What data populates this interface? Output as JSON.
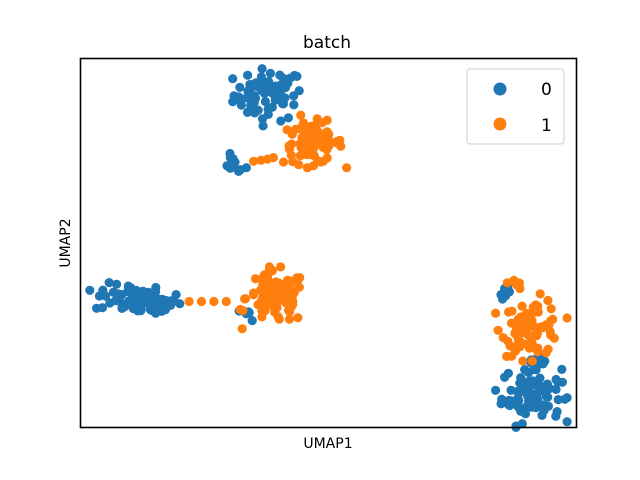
{
  "chart_data": {
    "type": "scatter",
    "title": "batch",
    "xlabel": "UMAP1",
    "ylabel": "UMAP2",
    "xlim": [
      0,
      100
    ],
    "ylim": [
      0,
      100
    ],
    "ticks": "none",
    "grid": false,
    "legend_position": "top-right",
    "legend_entries": [
      "0",
      "1"
    ],
    "series": [
      {
        "name": "0",
        "color": "#1f77b4",
        "clusters": [
          {
            "center": [
              38,
              90
            ],
            "spread": [
              3.5,
              3.5
            ],
            "count": 70
          },
          {
            "center": [
              31,
              71
            ],
            "spread": [
              1.2,
              1.3
            ],
            "count": 12
          },
          {
            "center": [
              10,
              35
            ],
            "spread": [
              3.5,
              1.9
            ],
            "count": 50
          },
          {
            "center": [
              15,
              33.5
            ],
            "spread": [
              3.0,
              1.6
            ],
            "count": 40
          },
          {
            "center": [
              34,
              30.5
            ],
            "spread": [
              0.8,
              0.8
            ],
            "count": 6
          },
          {
            "center": [
              86,
              37
            ],
            "spread": [
              0.8,
              1.1
            ],
            "count": 7
          },
          {
            "center": [
              91,
              9
            ],
            "spread": [
              3.0,
              3.8
            ],
            "count": 80
          },
          {
            "center": [
              92,
              17.5
            ],
            "spread": [
              1.0,
              1.6
            ],
            "count": 10
          }
        ],
        "points": []
      },
      {
        "name": "1",
        "color": "#ff7f0e",
        "clusters": [
          {
            "center": [
              47,
              77
            ],
            "spread": [
              3.0,
              2.8
            ],
            "count": 80
          },
          {
            "center": [
              39.5,
              35
            ],
            "spread": [
              3.0,
              3.5
            ],
            "count": 90
          },
          {
            "center": [
              91,
              27
            ],
            "spread": [
              3.0,
              3.8
            ],
            "count": 80
          },
          {
            "center": [
              88,
              39
            ],
            "spread": [
              0.8,
              0.8
            ],
            "count": 6
          }
        ],
        "points": [
          [
            44.5,
            84.5
          ],
          [
            35,
            72
          ],
          [
            36.5,
            72.3
          ],
          [
            37.8,
            72.6
          ],
          [
            39,
            73.0
          ],
          [
            22,
            34
          ],
          [
            24.5,
            34
          ],
          [
            27,
            34
          ],
          [
            29.5,
            34
          ]
        ]
      }
    ]
  }
}
